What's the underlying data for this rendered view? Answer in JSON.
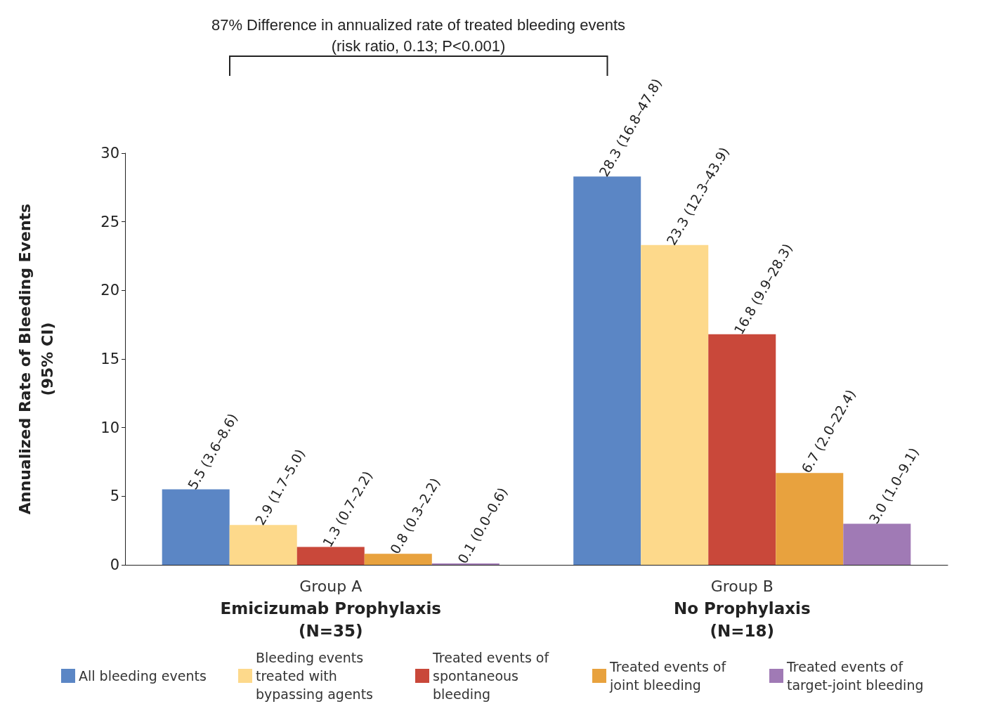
{
  "chart_data": {
    "type": "bar",
    "categories": [
      "Group A\nEmicizumab Prophylaxis\n(N=35)",
      "Group B\nNo Prophylaxis\n(N=18)"
    ],
    "ylabel": "Annualized Rate of Bleeding Events\n(95% CI)",
    "ylim": [
      0,
      30
    ],
    "yticks": [
      0,
      5,
      10,
      15,
      20,
      25,
      30
    ],
    "grid": false,
    "legend": "bottom",
    "annotations": [
      "87% Difference in annualized rate of treated bleeding events\n(risk ratio, 0.13; P<0.001)"
    ],
    "series": [
      {
        "name": "All bleeding events",
        "color": "#5b86c5",
        "values": [
          5.5,
          28.3
        ],
        "value_labels": [
          "5.5 (3.6–8.6)",
          "28.3 (16.8–47.8)"
        ]
      },
      {
        "name": "Bleeding events treated with bypassing agents",
        "color": "#fdd98b",
        "values": [
          2.9,
          23.3
        ],
        "value_labels": [
          "2.9 (1.7–5.0)",
          "23.3 (12.3–43.9)"
        ]
      },
      {
        "name": "Treated events of spontaneous bleeding",
        "color": "#c9483a",
        "values": [
          1.3,
          16.8
        ],
        "value_labels": [
          "1.3 (0.7–2.2)",
          "16.8 (9.9–28.3)"
        ]
      },
      {
        "name": "Treated events of joint bleeding",
        "color": "#e8a23e",
        "values": [
          0.8,
          6.7
        ],
        "value_labels": [
          "0.8 (0.3–2.2)",
          "6.7 (2.0–22.4)"
        ]
      },
      {
        "name": "Treated events of target-joint bleeding",
        "color": "#a07ab5",
        "values": [
          0.1,
          3.0
        ],
        "value_labels": [
          "0.1 (0.0–0.6)",
          "3.0 (1.0–9.1)"
        ]
      }
    ]
  }
}
